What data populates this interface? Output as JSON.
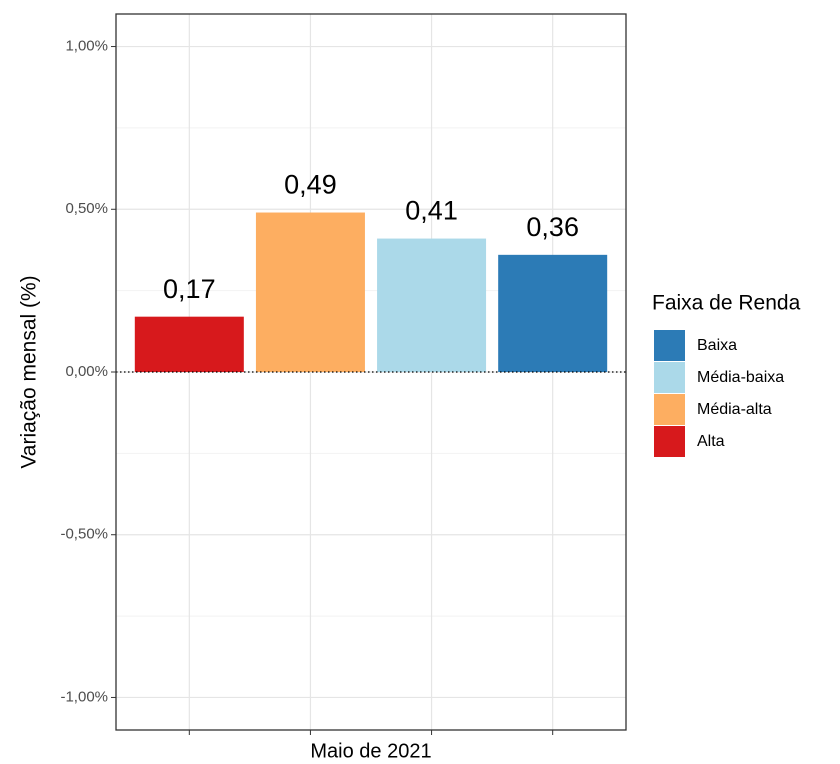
{
  "chart_data": {
    "type": "bar",
    "ylabel": "Variação mensal (%)",
    "legend_title": "Faixa de Renda",
    "legend_position": "right",
    "categories": [
      "Maio de 2021"
    ],
    "series": [
      {
        "name": "Baixa",
        "color": "#2c7bb6",
        "values": [
          0.36
        ],
        "value_labels": [
          "0,36"
        ]
      },
      {
        "name": "Média-baixa",
        "color": "#abd9e9",
        "values": [
          0.41
        ],
        "value_labels": [
          "0,41"
        ]
      },
      {
        "name": "Média-alta",
        "color": "#fdae61",
        "values": [
          0.49
        ],
        "value_labels": [
          "0,49"
        ]
      },
      {
        "name": "Alta",
        "color": "#d7191c",
        "values": [
          0.17
        ],
        "value_labels": [
          "0,17"
        ]
      }
    ],
    "ylim": [
      -1.1,
      1.1
    ],
    "yticks": [
      {
        "value": -1,
        "label": "-1,00%"
      },
      {
        "value": -0.5,
        "label": "-0,50%"
      },
      {
        "value": 0,
        "label": "0,00%"
      },
      {
        "value": 0.5,
        "label": "0,50%"
      },
      {
        "value": 1,
        "label": "1,00%"
      }
    ],
    "zero_line": 0,
    "grid": true
  }
}
